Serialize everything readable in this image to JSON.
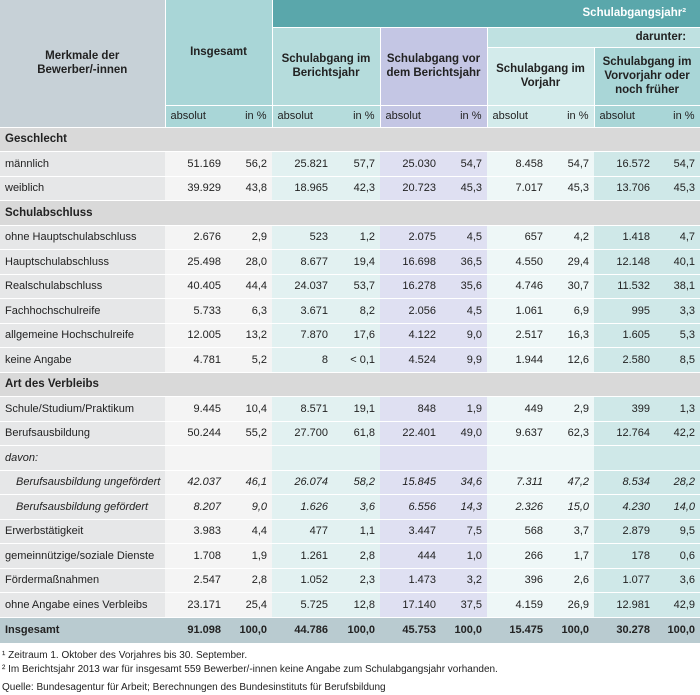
{
  "header": {
    "label": "Merkmale der Bewerber/-innen",
    "total": "Insgesamt",
    "group": "Schulabgangsjahr²",
    "subgroup": "darunter:",
    "columns": [
      "Schulabgang im Berichtsjahr",
      "Schulabgang vor dem Berichtsjahr",
      "Schulabgang im Vorjahr",
      "Schulabgang im Vorvorjahr oder noch früher"
    ],
    "units": [
      "absolut",
      "in %"
    ]
  },
  "rows": [
    {
      "label": "Geschlecht",
      "section": true
    },
    {
      "label": "männlich",
      "cells": [
        "51.169",
        "56,2",
        "25.821",
        "57,7",
        "25.030",
        "54,7",
        "8.458",
        "54,7",
        "16.572",
        "54,7"
      ]
    },
    {
      "label": "weiblich",
      "cells": [
        "39.929",
        "43,8",
        "18.965",
        "42,3",
        "20.723",
        "45,3",
        "7.017",
        "45,3",
        "13.706",
        "45,3"
      ]
    },
    {
      "label": "Schulabschluss",
      "section": true
    },
    {
      "label": "ohne Hauptschulabschluss",
      "cells": [
        "2.676",
        "2,9",
        "523",
        "1,2",
        "2.075",
        "4,5",
        "657",
        "4,2",
        "1.418",
        "4,7"
      ]
    },
    {
      "label": "Hauptschulabschluss",
      "cells": [
        "25.498",
        "28,0",
        "8.677",
        "19,4",
        "16.698",
        "36,5",
        "4.550",
        "29,4",
        "12.148",
        "40,1"
      ]
    },
    {
      "label": "Realschulabschluss",
      "cells": [
        "40.405",
        "44,4",
        "24.037",
        "53,7",
        "16.278",
        "35,6",
        "4.746",
        "30,7",
        "11.532",
        "38,1"
      ]
    },
    {
      "label": "Fachhochschulreife",
      "cells": [
        "5.733",
        "6,3",
        "3.671",
        "8,2",
        "2.056",
        "4,5",
        "1.061",
        "6,9",
        "995",
        "3,3"
      ]
    },
    {
      "label": "allgemeine Hochschulreife",
      "cells": [
        "12.005",
        "13,2",
        "7.870",
        "17,6",
        "4.122",
        "9,0",
        "2.517",
        "16,3",
        "1.605",
        "5,3"
      ]
    },
    {
      "label": "keine Angabe",
      "cells": [
        "4.781",
        "5,2",
        "8",
        "< 0,1",
        "4.524",
        "9,9",
        "1.944",
        "12,6",
        "2.580",
        "8,5"
      ]
    },
    {
      "label": "Art des Verbleibs",
      "section": true
    },
    {
      "label": "Schule/Studium/Praktikum",
      "cells": [
        "9.445",
        "10,4",
        "8.571",
        "19,1",
        "848",
        "1,9",
        "449",
        "2,9",
        "399",
        "1,3"
      ]
    },
    {
      "label": "Berufsausbildung",
      "cells": [
        "50.244",
        "55,2",
        "27.700",
        "61,8",
        "22.401",
        "49,0",
        "9.637",
        "62,3",
        "12.764",
        "42,2"
      ]
    },
    {
      "label": "davon:",
      "italic": true,
      "cells": []
    },
    {
      "label": "Berufsausbildung ungefördert",
      "italic": true,
      "indent": true,
      "cells": [
        "42.037",
        "46,1",
        "26.074",
        "58,2",
        "15.845",
        "34,6",
        "7.311",
        "47,2",
        "8.534",
        "28,2"
      ]
    },
    {
      "label": "Berufsausbildung gefördert",
      "italic": true,
      "indent": true,
      "cells": [
        "8.207",
        "9,0",
        "1.626",
        "3,6",
        "6.556",
        "14,3",
        "2.326",
        "15,0",
        "4.230",
        "14,0"
      ]
    },
    {
      "label": "Erwerbstätigkeit",
      "cells": [
        "3.983",
        "4,4",
        "477",
        "1,1",
        "3.447",
        "7,5",
        "568",
        "3,7",
        "2.879",
        "9,5"
      ]
    },
    {
      "label": "gemeinnützige/soziale Dienste",
      "cells": [
        "1.708",
        "1,9",
        "1.261",
        "2,8",
        "444",
        "1,0",
        "266",
        "1,7",
        "178",
        "0,6"
      ]
    },
    {
      "label": "Fördermaßnahmen",
      "cells": [
        "2.547",
        "2,8",
        "1.052",
        "2,3",
        "1.473",
        "3,2",
        "396",
        "2,6",
        "1.077",
        "3,6"
      ]
    },
    {
      "label": "ohne Angabe eines Verbleibs",
      "cells": [
        "23.171",
        "25,4",
        "5.725",
        "12,8",
        "17.140",
        "37,5",
        "4.159",
        "26,9",
        "12.981",
        "42,9"
      ]
    },
    {
      "label": "Insgesamt",
      "total": true,
      "cells": [
        "91.098",
        "100,0",
        "44.786",
        "100,0",
        "45.753",
        "100,0",
        "15.475",
        "100,0",
        "30.278",
        "100,0"
      ]
    }
  ],
  "footnotes": [
    "¹ Zeitraum 1. Oktober des Vorjahres bis 30. September.",
    "² Im Berichtsjahr 2013 war für insgesamt 559 Bewerber/-innen keine Angabe zum Schulabgangsjahr vorhanden.",
    "Quelle: Bundesagentur für Arbeit; Berechnungen des Bundesinstituts für Berufsbildung"
  ]
}
